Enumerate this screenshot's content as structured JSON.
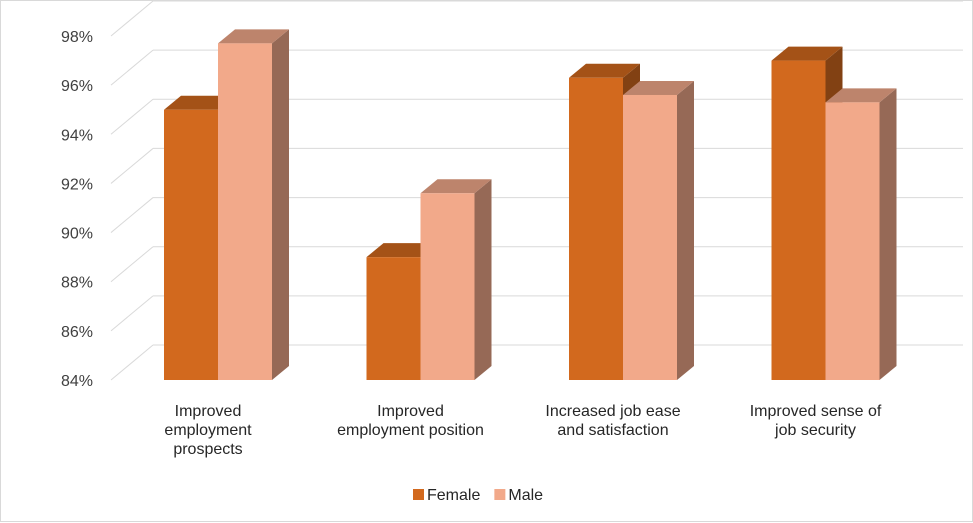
{
  "chart_data": {
    "type": "bar",
    "categories": [
      "Improved employment prospects",
      "Improved employment position",
      "Increased job ease and satisfaction",
      "Improved sense of job security"
    ],
    "category_lines": [
      [
        "Improved",
        "employment",
        "prospects"
      ],
      [
        "Improved",
        "employment position"
      ],
      [
        "Increased job ease",
        "and satisfaction"
      ],
      [
        "Improved sense of",
        "job security"
      ]
    ],
    "series": [
      {
        "name": "Female",
        "values": [
          95.0,
          89.0,
          96.3,
          97.0
        ],
        "color": "#d2691e"
      },
      {
        "name": "Male",
        "values": [
          97.7,
          91.6,
          95.6,
          95.3
        ],
        "color": "#f2a98a"
      }
    ],
    "ylim": [
      84,
      98
    ],
    "y_ticks": [
      "84%",
      "86%",
      "88%",
      "90%",
      "92%",
      "94%",
      "96%",
      "98%"
    ],
    "grid": true,
    "legend_position": "bottom",
    "style": "3d-clustered-column"
  }
}
